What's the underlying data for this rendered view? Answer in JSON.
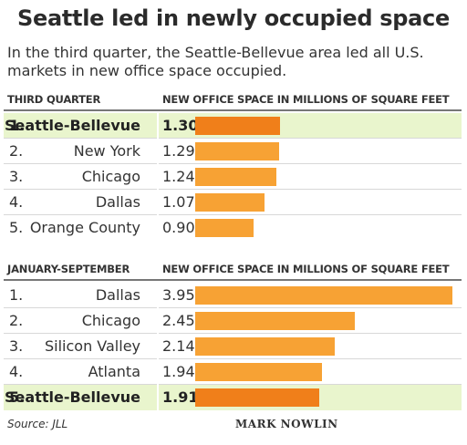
{
  "title": "Seattle led in newly occupied space",
  "subtitle": "In the third quarter, the Seattle-Bellevue area led all U.S. markets in new office space occupied.",
  "colors": {
    "bar": "#f7a234",
    "bar_highlight": "#f07f1a",
    "highlight_bg": "#e9f5cd"
  },
  "chart_data": [
    {
      "type": "bar",
      "section_label": "THIRD QUARTER",
      "value_header": "NEW OFFICE SPACE IN MILLIONS OF SQUARE FEET",
      "ranks": [
        "1.",
        "2.",
        "3.",
        "4.",
        "5."
      ],
      "categories": [
        "Seattle-Bellevue",
        "New York",
        "Chicago",
        "Dallas",
        "Orange County"
      ],
      "values": [
        1.3,
        1.29,
        1.24,
        1.07,
        0.9
      ],
      "value_labels": [
        "1.30",
        "1.29",
        "1.24",
        "1.07",
        "0.90"
      ],
      "highlight": "Seattle-Bellevue",
      "scale_max": 3.95
    },
    {
      "type": "bar",
      "section_label": "JANUARY-SEPTEMBER",
      "value_header": "NEW OFFICE SPACE IN MILLIONS OF SQUARE FEET",
      "ranks": [
        "1.",
        "2.",
        "3.",
        "4.",
        "5."
      ],
      "categories": [
        "Dallas",
        "Chicago",
        "Silicon Valley",
        "Atlanta",
        "Seattle-Bellevue"
      ],
      "values": [
        3.95,
        2.45,
        2.14,
        1.94,
        1.91
      ],
      "value_labels": [
        "3.95",
        "2.45",
        "2.14",
        "1.94",
        "1.91"
      ],
      "highlight": "Seattle-Bellevue",
      "scale_max": 3.95
    }
  ],
  "footer": {
    "source": "Source: JLL",
    "credit": "MARK NOWLIN"
  }
}
